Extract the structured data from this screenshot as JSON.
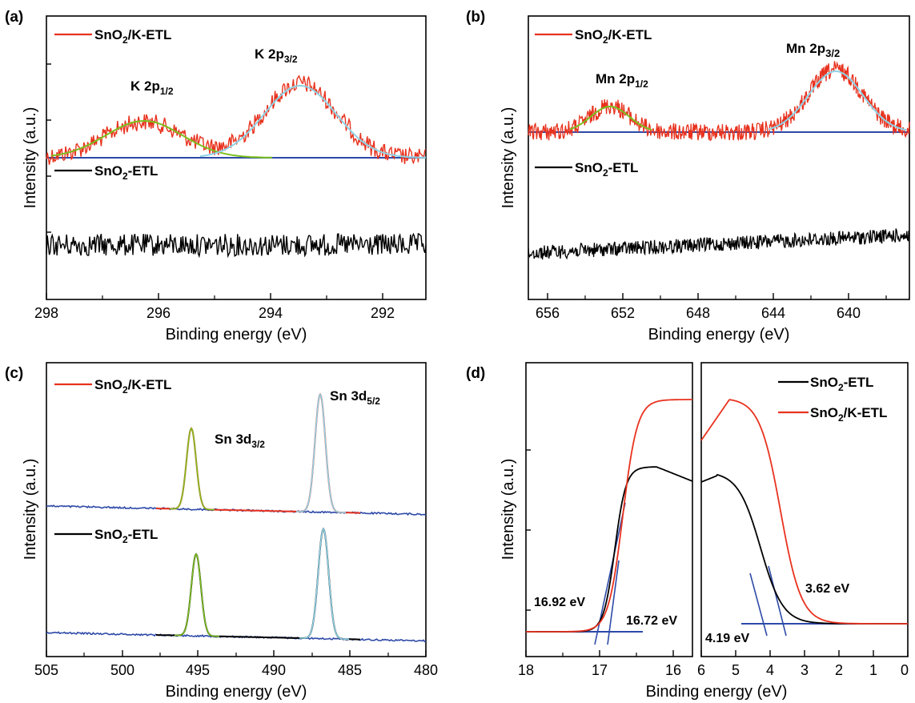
{
  "figure": {
    "colors": {
      "black": "#000000",
      "red": "#e8321e",
      "blue": "#2e4aa8",
      "green": "#7cbf1e",
      "cyan": "#8fd3e6"
    },
    "panels": {
      "a": {
        "label": "(a)",
        "xlabel": "Binding energy (eV)",
        "ylabel": "Intensity (a.u.)",
        "xticks": [
          "298",
          "296",
          "294",
          "292"
        ],
        "legend": [
          {
            "base": "SnO",
            "sub": "2",
            "rest": "/K-ETL",
            "color": "#e8321e"
          },
          {
            "base": "SnO",
            "sub": "2",
            "rest": "-ETL",
            "color": "#000000"
          }
        ],
        "peaks": [
          {
            "base": "K 2p",
            "sub": "1/2"
          },
          {
            "base": "K 2p",
            "sub": "3/2"
          }
        ]
      },
      "b": {
        "label": "(b)",
        "xlabel": "Binding energy (eV)",
        "ylabel": "Intensity (a.u.)",
        "xticks": [
          "656",
          "652",
          "648",
          "644",
          "640"
        ],
        "legend": [
          {
            "base": "SnO",
            "sub": "2",
            "rest": "/K-ETL",
            "color": "#e8321e"
          },
          {
            "base": "SnO",
            "sub": "2",
            "rest": "-ETL",
            "color": "#000000"
          }
        ],
        "peaks": [
          {
            "base": "Mn 2p",
            "sub": "1/2"
          },
          {
            "base": "Mn 2p",
            "sub": "3/2"
          }
        ]
      },
      "c": {
        "label": "(c)",
        "xlabel": "Binding energy (eV)",
        "ylabel": "Intensity (a.u.)",
        "xticks": [
          "505",
          "500",
          "495",
          "490",
          "485",
          "480"
        ],
        "legend": [
          {
            "base": "SnO",
            "sub": "2",
            "rest": "/K-ETL",
            "color": "#e8321e"
          },
          {
            "base": "SnO",
            "sub": "2",
            "rest": "-ETL",
            "color": "#000000"
          }
        ],
        "peaks": [
          {
            "base": "Sn 3d",
            "sub": "3/2"
          },
          {
            "base": "Sn 3d",
            "sub": "5/2"
          }
        ]
      },
      "d": {
        "label": "(d)",
        "xlabel": "Binding energy (eV)",
        "ylabel": "Intensity (a.u.)",
        "xticks_left": [
          "18",
          "17",
          "16"
        ],
        "xticks_right": [
          "6",
          "5",
          "4",
          "3",
          "2",
          "1",
          "0"
        ],
        "legend": [
          {
            "base": "SnO",
            "sub": "2",
            "rest": "-ETL",
            "color": "#000000"
          },
          {
            "base": "SnO",
            "sub": "2",
            "rest": "/K-ETL",
            "color": "#e8321e"
          }
        ],
        "annotations": [
          "16.92 eV",
          "16.72 eV",
          "4.19 eV",
          "3.62 eV"
        ]
      }
    }
  },
  "chart_data": [
    {
      "type": "line",
      "panel": "a",
      "xlabel": "Binding energy (eV)",
      "ylabel": "Intensity (a.u.)",
      "xlim": [
        298,
        291.2
      ],
      "reversed_x": true,
      "series": [
        {
          "name": "SnO2/K-ETL",
          "color": "#e8321e",
          "x": [
            298,
            297,
            296.2,
            295,
            294,
            293.4,
            292.5,
            292,
            291.2
          ],
          "y": [
            0.58,
            0.63,
            0.75,
            0.62,
            0.78,
            0.9,
            0.68,
            0.57,
            0.58
          ]
        },
        {
          "name": "SnO2-ETL",
          "color": "#000000",
          "x": [
            298,
            296,
            294,
            292,
            291.2
          ],
          "y": [
            0.22,
            0.22,
            0.22,
            0.22,
            0.22
          ]
        }
      ],
      "fits": [
        {
          "label": "K 2p1/2",
          "center": 296.2,
          "color": "#7cbf1e"
        },
        {
          "label": "K 2p3/2",
          "center": 293.4,
          "color": "#8fd3e6"
        }
      ]
    },
    {
      "type": "line",
      "panel": "b",
      "xlabel": "Binding energy (eV)",
      "ylabel": "Intensity (a.u.)",
      "xlim": [
        658,
        638
      ],
      "reversed_x": true,
      "series": [
        {
          "name": "SnO2/K-ETL",
          "color": "#e8321e",
          "x": [
            658,
            656,
            653.5,
            651,
            648,
            645,
            642,
            640,
            638
          ],
          "y": [
            0.66,
            0.67,
            0.76,
            0.66,
            0.68,
            0.7,
            0.91,
            0.66,
            0.65
          ]
        },
        {
          "name": "SnO2-ETL",
          "color": "#000000",
          "x": [
            658,
            652,
            646,
            642,
            638
          ],
          "y": [
            0.2,
            0.22,
            0.24,
            0.25,
            0.26
          ]
        }
      ],
      "fits": [
        {
          "label": "Mn 2p1/2",
          "center": 653.5,
          "color": "#7cbf1e"
        },
        {
          "label": "Mn 2p3/2",
          "center": 642.0,
          "color": "#8fd3e6"
        }
      ]
    },
    {
      "type": "line",
      "panel": "c",
      "xlabel": "Binding energy (eV)",
      "ylabel": "Intensity (a.u.)",
      "xlim": [
        505,
        480
      ],
      "reversed_x": true,
      "series": [
        {
          "name": "SnO2/K-ETL",
          "color": "#e8321e",
          "x": [
            505,
            498,
            495.3,
            492,
            487,
            484,
            480
          ],
          "y": [
            0.53,
            0.52,
            0.8,
            0.51,
            0.98,
            0.5,
            0.5
          ]
        },
        {
          "name": "SnO2-ETL",
          "color": "#000000",
          "x": [
            505,
            498,
            495.2,
            492,
            486.8,
            484,
            480
          ],
          "y": [
            0.07,
            0.06,
            0.37,
            0.05,
            0.65,
            0.04,
            0.04
          ]
        }
      ],
      "fits": [
        {
          "label": "Sn 3d3/2",
          "center": 495.3,
          "color": "#7cbf1e"
        },
        {
          "label": "Sn 3d5/2",
          "center": 487.0,
          "color": "#8fd3e6"
        }
      ]
    },
    {
      "type": "line",
      "panel": "d",
      "xlabel": "Binding energy (eV)",
      "ylabel": "Intensity (a.u.)",
      "xlim_left": [
        18,
        15.8
      ],
      "xlim_right": [
        6,
        0
      ],
      "series": [
        {
          "name": "SnO2-ETL",
          "color": "#000000",
          "x_left": [
            18,
            17.2,
            16.8,
            16.6,
            16.4,
            16.0,
            15.8
          ],
          "y_left": [
            0.03,
            0.03,
            0.05,
            0.35,
            0.58,
            0.62,
            0.57
          ],
          "x_right": [
            6,
            5.5,
            5.0,
            4.5,
            4.0,
            3.5,
            3.0,
            2.0,
            1.4
          ],
          "y_right": [
            0.55,
            0.58,
            0.45,
            0.2,
            0.08,
            0.05,
            0.04,
            0.04,
            0.04
          ]
        },
        {
          "name": "SnO2/K-ETL",
          "color": "#e8321e",
          "x_left": [
            18,
            17.2,
            16.7,
            16.5,
            16.2,
            16.0,
            15.8
          ],
          "y_left": [
            0.03,
            0.03,
            0.05,
            0.4,
            0.68,
            0.75,
            0.78
          ],
          "x_right": [
            6,
            5.5,
            5.0,
            4.5,
            4.0,
            3.5,
            3.0,
            2.0,
            0
          ],
          "y_right": [
            0.74,
            0.8,
            0.8,
            0.65,
            0.35,
            0.1,
            0.05,
            0.04,
            0.04
          ]
        }
      ],
      "annotations": [
        {
          "text": "16.92 eV",
          "x": 16.92
        },
        {
          "text": "16.72 eV",
          "x": 16.72
        },
        {
          "text": "4.19 eV",
          "x": 4.19
        },
        {
          "text": "3.62 eV",
          "x": 3.62
        }
      ]
    }
  ]
}
